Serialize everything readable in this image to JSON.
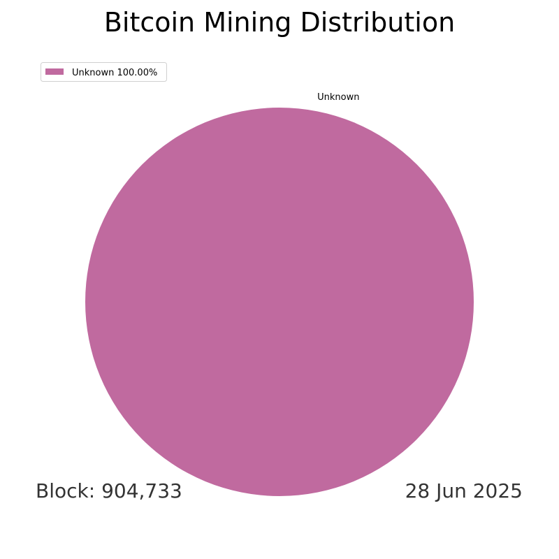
{
  "chart_data": {
    "type": "pie",
    "title": "Bitcoin Mining Distribution",
    "slices": [
      {
        "label": "Unknown",
        "value": 100.0,
        "color": "#c06a9f"
      }
    ],
    "legend": {
      "placement": "upper-left",
      "entries": [
        {
          "label": "Unknown 100.00%",
          "color": "#c06a9f"
        }
      ]
    },
    "annotations": {
      "block": "Block: 904,733",
      "date": "28 Jun 2025"
    }
  }
}
